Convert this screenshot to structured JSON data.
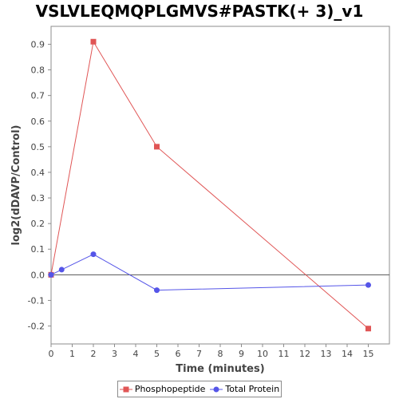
{
  "chart_data": {
    "type": "line",
    "title": "VSLVLEQMQPLGMVS#PASTK(+ 3)_v1",
    "xlabel": "Time (minutes)",
    "ylabel": "log2(dDAVP/Control)",
    "xlim": [
      0,
      16
    ],
    "ylim": [
      -0.27,
      0.97
    ],
    "xticks": [
      0,
      1,
      2,
      3,
      4,
      5,
      6,
      7,
      8,
      9,
      10,
      11,
      12,
      13,
      14,
      15
    ],
    "yticks": [
      -0.2,
      -0.1,
      0.0,
      0.1,
      0.2,
      0.3,
      0.4,
      0.5,
      0.6,
      0.7,
      0.8,
      0.9
    ],
    "ytick_labels": [
      "-0.2",
      "-0.1",
      "0.0",
      "0.1",
      "0.2",
      "0.3",
      "0.4",
      "0.5",
      "0.6",
      "0.7",
      "0.8",
      "0.9"
    ],
    "grid": false,
    "zero_line": true,
    "legend_position": "bottom",
    "series": [
      {
        "name": "Phosphopeptide",
        "color": "#e05555",
        "marker": "square",
        "x": [
          0,
          2,
          5,
          15
        ],
        "y": [
          0.0,
          0.91,
          0.5,
          -0.21
        ]
      },
      {
        "name": "Total Protein",
        "color": "#5555e8",
        "marker": "circle",
        "x": [
          0,
          0.5,
          2,
          5,
          15
        ],
        "y": [
          0.0,
          0.02,
          0.08,
          -0.06,
          -0.04
        ]
      }
    ]
  }
}
